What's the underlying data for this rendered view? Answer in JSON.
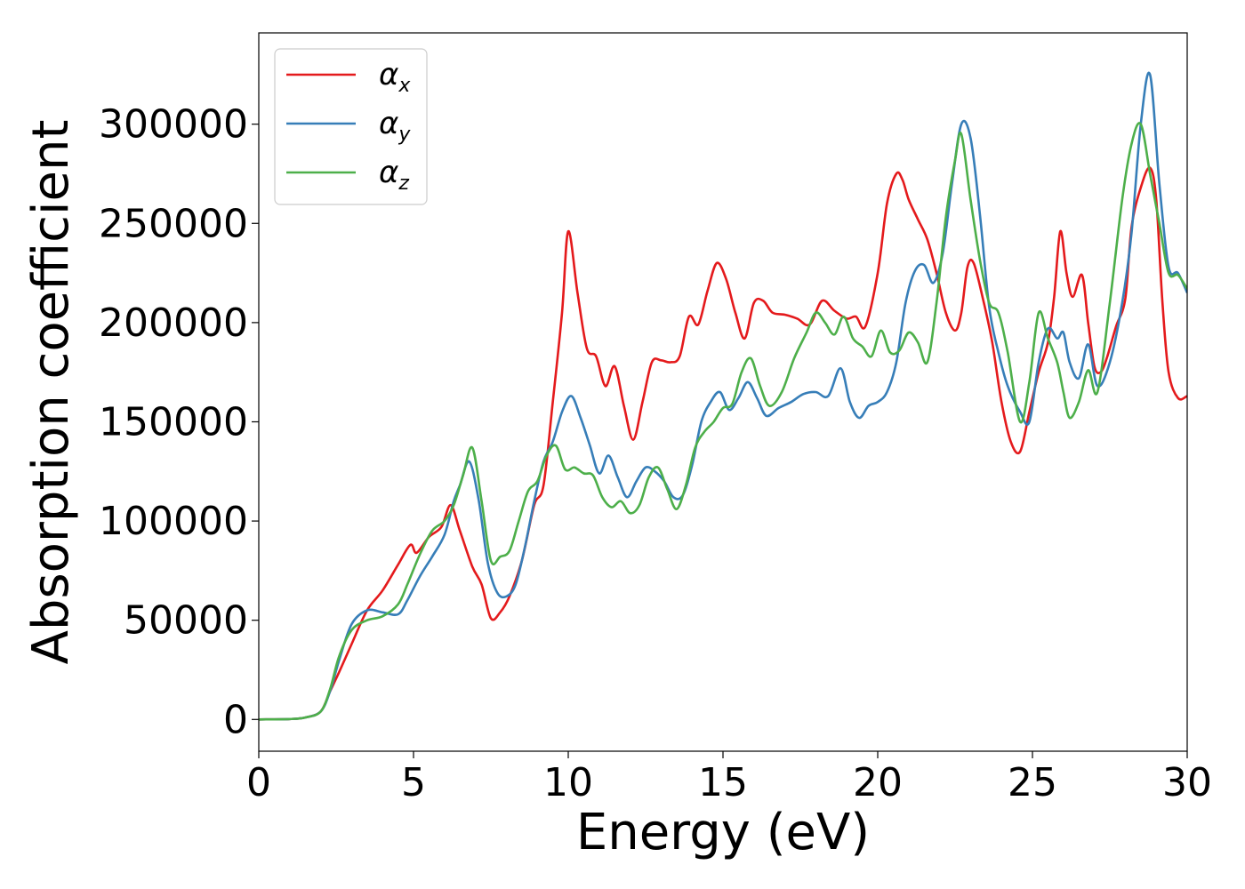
{
  "chart_data": {
    "type": "line",
    "xlabel": "Energy (eV)",
    "ylabel": "Absorption coefficient",
    "xlim": [
      0,
      30
    ],
    "ylim": [
      -16000,
      346000
    ],
    "xticks": [
      0,
      5,
      10,
      15,
      20,
      25,
      30
    ],
    "xtick_labels": [
      "0",
      "5",
      "10",
      "15",
      "20",
      "25",
      "30"
    ],
    "yticks": [
      0,
      50000,
      100000,
      150000,
      200000,
      250000,
      300000
    ],
    "ytick_labels": [
      "0",
      "50000",
      "100000",
      "150000",
      "200000",
      "250000",
      "300000"
    ],
    "grid": false,
    "legend_position": "top-left",
    "series": [
      {
        "name": "αx",
        "label_base": "α",
        "label_sub": "x",
        "color": "#e41a1c",
        "x": [
          0,
          1,
          1.5,
          2,
          2.3,
          2.6,
          3,
          3.5,
          4,
          4.5,
          4.9,
          5.1,
          5.5,
          5.9,
          6.2,
          6.5,
          6.9,
          7.2,
          7.5,
          7.8,
          8.1,
          8.5,
          8.9,
          9.2,
          9.5,
          9.8,
          10,
          10.3,
          10.6,
          10.9,
          11.2,
          11.5,
          11.8,
          12.1,
          12.4,
          12.7,
          13,
          13.3,
          13.6,
          13.9,
          14.2,
          14.5,
          14.8,
          15.1,
          15.4,
          15.7,
          16,
          16.3,
          16.6,
          17,
          17.4,
          17.8,
          18.2,
          18.6,
          19,
          19.3,
          19.6,
          20,
          20.3,
          20.6,
          20.8,
          21,
          21.3,
          21.6,
          21.9,
          22.2,
          22.5,
          22.7,
          22.9,
          23.1,
          23.4,
          23.7,
          24,
          24.3,
          24.6,
          24.9,
          25.2,
          25.5,
          25.7,
          25.9,
          26.1,
          26.3,
          26.6,
          26.8,
          27,
          27.2,
          27.4,
          27.7,
          28,
          28.2,
          28.5,
          28.8,
          29,
          29.2,
          29.4,
          29.7,
          30
        ],
        "y": [
          0,
          200,
          1000,
          4000,
          14000,
          24000,
          38000,
          55000,
          65000,
          78000,
          88000,
          84000,
          92000,
          97000,
          108000,
          95000,
          77000,
          68000,
          51000,
          54000,
          62000,
          80000,
          108000,
          118000,
          160000,
          205000,
          246000,
          215000,
          187000,
          183000,
          168000,
          178000,
          158000,
          141000,
          160000,
          180000,
          181000,
          180000,
          183000,
          203000,
          199000,
          216000,
          230000,
          222000,
          205000,
          192000,
          210000,
          211000,
          205000,
          204000,
          202000,
          199000,
          211000,
          206000,
          202000,
          203000,
          198000,
          225000,
          260000,
          275000,
          272000,
          262000,
          252000,
          242000,
          225000,
          205000,
          196000,
          205000,
          228000,
          230000,
          212000,
          190000,
          160000,
          140000,
          135000,
          155000,
          175000,
          190000,
          213000,
          246000,
          225000,
          213000,
          224000,
          200000,
          178000,
          175000,
          182000,
          198000,
          212000,
          248000,
          268000,
          278000,
          262000,
          210000,
          175000,
          162000,
          163000
        ]
      },
      {
        "name": "αy",
        "label_base": "α",
        "label_sub": "y",
        "color": "#377eb8",
        "x": [
          0,
          1,
          1.5,
          2,
          2.3,
          2.6,
          3,
          3.5,
          4,
          4.5,
          4.8,
          5.2,
          5.6,
          6,
          6.3,
          6.5,
          6.8,
          7.1,
          7.4,
          7.7,
          8,
          8.3,
          8.6,
          8.9,
          9.2,
          9.5,
          9.8,
          10.1,
          10.4,
          10.7,
          11,
          11.3,
          11.6,
          11.9,
          12.2,
          12.5,
          12.8,
          13.1,
          13.4,
          13.7,
          14,
          14.3,
          14.6,
          14.9,
          15.2,
          15.5,
          15.8,
          16.1,
          16.4,
          16.8,
          17.2,
          17.6,
          18,
          18.4,
          18.8,
          19.1,
          19.4,
          19.7,
          20,
          20.3,
          20.6,
          20.9,
          21.2,
          21.5,
          21.8,
          22.1,
          22.4,
          22.7,
          23,
          23.3,
          23.6,
          23.9,
          24.2,
          24.6,
          24.9,
          25.2,
          25.5,
          25.8,
          26,
          26.2,
          26.5,
          26.8,
          27.1,
          27.5,
          27.9,
          28.2,
          28.5,
          28.8,
          29.1,
          29.4,
          29.7,
          30
        ],
        "y": [
          0,
          200,
          1000,
          4000,
          14000,
          30000,
          48000,
          55000,
          54000,
          53000,
          60000,
          72000,
          82000,
          93000,
          110000,
          118000,
          130000,
          111000,
          79000,
          64000,
          62000,
          68000,
          87000,
          110000,
          130000,
          140000,
          155000,
          163000,
          152000,
          138000,
          124000,
          133000,
          122000,
          112000,
          120000,
          127000,
          125000,
          120000,
          112000,
          113000,
          128000,
          150000,
          160000,
          165000,
          156000,
          162000,
          170000,
          162000,
          153000,
          157000,
          160000,
          164000,
          165000,
          163000,
          177000,
          160000,
          152000,
          158000,
          160000,
          165000,
          180000,
          210000,
          226000,
          229000,
          220000,
          235000,
          270000,
          300000,
          293000,
          255000,
          208000,
          185000,
          168000,
          155000,
          150000,
          180000,
          197000,
          192000,
          195000,
          180000,
          172000,
          189000,
          168000,
          180000,
          210000,
          245000,
          300000,
          325000,
          270000,
          228000,
          225000,
          215000
        ]
      },
      {
        "name": "αz",
        "label_base": "α",
        "label_sub": "z",
        "color": "#4daf4a",
        "x": [
          0,
          1,
          1.5,
          2,
          2.3,
          2.6,
          3,
          3.5,
          4,
          4.5,
          4.8,
          5.2,
          5.6,
          6,
          6.3,
          6.6,
          6.9,
          7.2,
          7.5,
          7.8,
          8.1,
          8.4,
          8.7,
          9,
          9.3,
          9.6,
          9.9,
          10.2,
          10.5,
          10.8,
          11.1,
          11.4,
          11.7,
          12,
          12.3,
          12.6,
          12.9,
          13.2,
          13.5,
          13.8,
          14.1,
          14.4,
          14.7,
          15,
          15.3,
          15.6,
          15.9,
          16.2,
          16.5,
          16.9,
          17.3,
          17.7,
          18,
          18.3,
          18.6,
          18.9,
          19.2,
          19.5,
          19.8,
          20.1,
          20.4,
          20.7,
          21,
          21.3,
          21.6,
          21.9,
          22.2,
          22.5,
          22.7,
          23,
          23.3,
          23.6,
          23.9,
          24.2,
          24.6,
          24.9,
          25.2,
          25.5,
          25.8,
          26,
          26.2,
          26.5,
          26.8,
          27.1,
          27.5,
          27.9,
          28.2,
          28.5,
          28.8,
          29.1,
          29.4,
          29.7,
          30
        ],
        "y": [
          0,
          200,
          1000,
          4000,
          15000,
          32000,
          45000,
          50000,
          52000,
          58000,
          68000,
          83000,
          95000,
          100000,
          108000,
          123000,
          137000,
          110000,
          80000,
          82000,
          85000,
          100000,
          115000,
          120000,
          133000,
          138000,
          126000,
          127000,
          124000,
          123000,
          112000,
          107000,
          110000,
          104000,
          108000,
          122000,
          127000,
          116000,
          106000,
          118000,
          137000,
          145000,
          150000,
          157000,
          159000,
          175000,
          182000,
          168000,
          158000,
          165000,
          182000,
          195000,
          205000,
          200000,
          194000,
          203000,
          192000,
          188000,
          183000,
          196000,
          185000,
          186000,
          195000,
          190000,
          180000,
          210000,
          253000,
          282000,
          295000,
          262000,
          232000,
          210000,
          205000,
          185000,
          150000,
          170000,
          205000,
          192000,
          180000,
          165000,
          152000,
          160000,
          176000,
          165000,
          210000,
          262000,
          290000,
          300000,
          275000,
          250000,
          225000,
          224000,
          217000
        ]
      }
    ]
  }
}
